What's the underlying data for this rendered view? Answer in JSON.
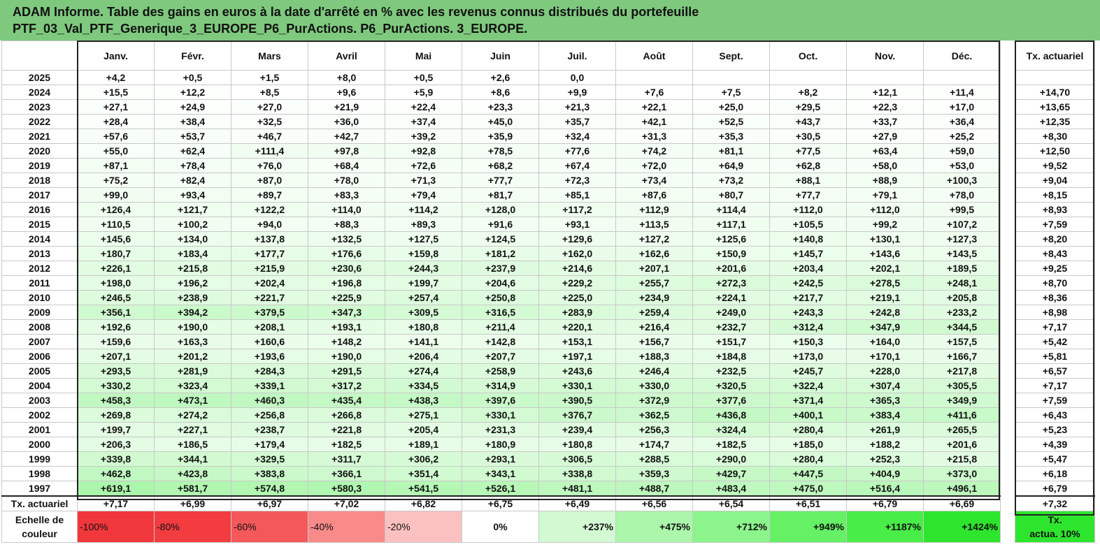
{
  "title_line1": "ADAM Informe. Table des gains en euros à la date d'arrêté en % avec les revenus connus distribués du portefeuille",
  "title_line2": "PTF_03_Val_PTF_Generique_3_EUROPE_P6_PurActions. P6_PurActions. 3_EUROPE.",
  "months": [
    "Janv.",
    "Févr.",
    "Mars",
    "Avril",
    "Mai",
    "Juin",
    "Juil.",
    "Août",
    "Sept.",
    "Oct.",
    "Nov.",
    "Déc."
  ],
  "actuarial_header": "Tx. actuariel",
  "rows": [
    {
      "year": "2025",
      "values": [
        "+4,2",
        "+0,5",
        "+1,5",
        "+8,0",
        "+0,5",
        "+2,6",
        "0,0",
        "",
        "",
        "",
        "",
        ""
      ],
      "actuarial": ""
    },
    {
      "year": "2024",
      "values": [
        "+15,5",
        "+12,2",
        "+8,5",
        "+9,6",
        "+5,9",
        "+8,6",
        "+9,9",
        "+7,6",
        "+7,5",
        "+8,2",
        "+12,1",
        "+11,4"
      ],
      "actuarial": "+14,70"
    },
    {
      "year": "2023",
      "values": [
        "+27,1",
        "+24,9",
        "+27,0",
        "+21,9",
        "+22,4",
        "+23,3",
        "+21,3",
        "+22,1",
        "+25,0",
        "+29,5",
        "+22,3",
        "+17,0"
      ],
      "actuarial": "+13,65"
    },
    {
      "year": "2022",
      "values": [
        "+28,4",
        "+38,4",
        "+32,5",
        "+36,0",
        "+37,4",
        "+45,0",
        "+35,7",
        "+42,1",
        "+52,5",
        "+43,7",
        "+33,7",
        "+36,4"
      ],
      "actuarial": "+12,35"
    },
    {
      "year": "2021",
      "values": [
        "+57,6",
        "+53,7",
        "+46,7",
        "+42,7",
        "+39,2",
        "+35,9",
        "+32,4",
        "+31,3",
        "+35,3",
        "+30,5",
        "+27,9",
        "+25,2"
      ],
      "actuarial": "+8,30"
    },
    {
      "year": "2020",
      "values": [
        "+55,0",
        "+62,4",
        "+111,4",
        "+97,8",
        "+92,8",
        "+78,5",
        "+77,6",
        "+74,2",
        "+81,1",
        "+77,5",
        "+63,4",
        "+59,0"
      ],
      "actuarial": "+12,50"
    },
    {
      "year": "2019",
      "values": [
        "+87,1",
        "+78,4",
        "+76,0",
        "+68,4",
        "+72,6",
        "+68,2",
        "+67,4",
        "+72,0",
        "+64,9",
        "+62,8",
        "+58,0",
        "+53,0"
      ],
      "actuarial": "+9,52"
    },
    {
      "year": "2018",
      "values": [
        "+75,2",
        "+82,4",
        "+87,0",
        "+78,0",
        "+71,3",
        "+77,7",
        "+72,3",
        "+73,4",
        "+73,2",
        "+88,1",
        "+88,9",
        "+100,3"
      ],
      "actuarial": "+9,04"
    },
    {
      "year": "2017",
      "values": [
        "+99,0",
        "+93,4",
        "+89,7",
        "+83,3",
        "+79,4",
        "+81,7",
        "+85,1",
        "+87,6",
        "+80,7",
        "+77,7",
        "+79,1",
        "+78,0"
      ],
      "actuarial": "+8,15"
    },
    {
      "year": "2016",
      "values": [
        "+126,4",
        "+121,7",
        "+122,2",
        "+114,0",
        "+114,2",
        "+128,0",
        "+117,2",
        "+112,9",
        "+114,4",
        "+112,0",
        "+112,0",
        "+99,5"
      ],
      "actuarial": "+8,93"
    },
    {
      "year": "2015",
      "values": [
        "+110,5",
        "+100,2",
        "+94,0",
        "+88,3",
        "+89,3",
        "+91,6",
        "+93,1",
        "+113,5",
        "+117,1",
        "+105,5",
        "+99,2",
        "+107,2"
      ],
      "actuarial": "+7,59"
    },
    {
      "year": "2014",
      "values": [
        "+145,6",
        "+134,0",
        "+137,8",
        "+132,5",
        "+127,5",
        "+124,5",
        "+129,6",
        "+127,2",
        "+125,6",
        "+140,8",
        "+130,1",
        "+127,3"
      ],
      "actuarial": "+8,20"
    },
    {
      "year": "2013",
      "values": [
        "+180,7",
        "+183,4",
        "+177,7",
        "+176,6",
        "+159,8",
        "+181,2",
        "+162,0",
        "+162,6",
        "+150,9",
        "+145,7",
        "+143,6",
        "+143,5"
      ],
      "actuarial": "+8,43"
    },
    {
      "year": "2012",
      "values": [
        "+226,1",
        "+215,8",
        "+215,9",
        "+230,6",
        "+244,3",
        "+237,9",
        "+214,6",
        "+207,1",
        "+201,6",
        "+203,4",
        "+202,1",
        "+189,5"
      ],
      "actuarial": "+9,25"
    },
    {
      "year": "2011",
      "values": [
        "+198,0",
        "+196,2",
        "+202,4",
        "+196,8",
        "+199,7",
        "+204,6",
        "+229,2",
        "+255,7",
        "+272,3",
        "+242,5",
        "+278,5",
        "+248,1"
      ],
      "actuarial": "+8,70"
    },
    {
      "year": "2010",
      "values": [
        "+246,5",
        "+238,9",
        "+221,7",
        "+225,9",
        "+257,4",
        "+250,8",
        "+225,0",
        "+234,9",
        "+224,1",
        "+217,7",
        "+219,1",
        "+205,8"
      ],
      "actuarial": "+8,36"
    },
    {
      "year": "2009",
      "values": [
        "+356,1",
        "+394,2",
        "+379,5",
        "+347,3",
        "+309,5",
        "+316,5",
        "+283,9",
        "+259,4",
        "+249,0",
        "+243,3",
        "+242,8",
        "+233,2"
      ],
      "actuarial": "+8,98"
    },
    {
      "year": "2008",
      "values": [
        "+192,6",
        "+190,0",
        "+208,1",
        "+193,1",
        "+180,8",
        "+211,4",
        "+220,1",
        "+216,4",
        "+232,7",
        "+312,4",
        "+347,9",
        "+344,5"
      ],
      "actuarial": "+7,17"
    },
    {
      "year": "2007",
      "values": [
        "+159,6",
        "+163,3",
        "+160,6",
        "+148,2",
        "+141,1",
        "+142,8",
        "+153,1",
        "+156,7",
        "+151,7",
        "+150,3",
        "+164,0",
        "+157,5"
      ],
      "actuarial": "+5,42"
    },
    {
      "year": "2006",
      "values": [
        "+207,1",
        "+201,2",
        "+193,6",
        "+190,0",
        "+206,4",
        "+207,7",
        "+197,1",
        "+188,3",
        "+184,8",
        "+173,0",
        "+170,1",
        "+166,7"
      ],
      "actuarial": "+5,81"
    },
    {
      "year": "2005",
      "values": [
        "+293,5",
        "+281,9",
        "+284,3",
        "+291,5",
        "+274,4",
        "+258,9",
        "+243,6",
        "+246,4",
        "+232,5",
        "+245,7",
        "+228,0",
        "+217,8"
      ],
      "actuarial": "+6,57"
    },
    {
      "year": "2004",
      "values": [
        "+330,2",
        "+323,4",
        "+339,1",
        "+317,2",
        "+334,5",
        "+314,9",
        "+330,1",
        "+330,0",
        "+320,5",
        "+322,4",
        "+307,4",
        "+305,5"
      ],
      "actuarial": "+7,17"
    },
    {
      "year": "2003",
      "values": [
        "+458,3",
        "+473,1",
        "+460,3",
        "+435,4",
        "+438,3",
        "+397,6",
        "+390,5",
        "+372,9",
        "+377,6",
        "+371,4",
        "+365,3",
        "+349,9"
      ],
      "actuarial": "+7,59"
    },
    {
      "year": "2002",
      "values": [
        "+269,8",
        "+274,2",
        "+256,8",
        "+266,8",
        "+275,1",
        "+330,1",
        "+376,7",
        "+362,5",
        "+436,8",
        "+400,1",
        "+383,4",
        "+411,6"
      ],
      "actuarial": "+6,43"
    },
    {
      "year": "2001",
      "values": [
        "+199,7",
        "+227,1",
        "+238,7",
        "+221,8",
        "+205,4",
        "+231,3",
        "+239,4",
        "+256,3",
        "+324,4",
        "+280,4",
        "+261,9",
        "+265,5"
      ],
      "actuarial": "+5,23"
    },
    {
      "year": "2000",
      "values": [
        "+206,3",
        "+186,5",
        "+179,4",
        "+182,5",
        "+189,1",
        "+180,9",
        "+180,8",
        "+174,7",
        "+182,5",
        "+185,0",
        "+188,2",
        "+201,6"
      ],
      "actuarial": "+4,39"
    },
    {
      "year": "1999",
      "values": [
        "+339,8",
        "+344,1",
        "+329,5",
        "+311,7",
        "+306,2",
        "+293,1",
        "+306,5",
        "+288,5",
        "+290,0",
        "+280,4",
        "+252,3",
        "+215,8"
      ],
      "actuarial": "+5,47"
    },
    {
      "year": "1998",
      "values": [
        "+462,8",
        "+423,8",
        "+383,8",
        "+366,1",
        "+351,4",
        "+343,1",
        "+338,8",
        "+359,3",
        "+429,7",
        "+447,5",
        "+404,9",
        "+373,0"
      ],
      "actuarial": "+6,18"
    },
    {
      "year": "1997",
      "values": [
        "+619,1",
        "+581,7",
        "+574,8",
        "+580,3",
        "+541,5",
        "+526,1",
        "+481,1",
        "+488,7",
        "+483,4",
        "+475,0",
        "+516,4",
        "+496,1"
      ],
      "actuarial": "+6,79"
    }
  ],
  "totals": {
    "label": "Tx. actuariel",
    "values": [
      "+7,17",
      "+6,99",
      "+6,97",
      "+7,02",
      "+6,82",
      "+6,75",
      "+6,49",
      "+6,56",
      "+6,54",
      "+6,51",
      "+6,79",
      "+6,69"
    ],
    "actuarial": "+7,32"
  },
  "scale": {
    "label_line1": "Echelle de",
    "label_line2": "couleur",
    "cells": [
      {
        "text": "-100%",
        "color": "#f0373c"
      },
      {
        "text": "-80%",
        "color": "#f23c40"
      },
      {
        "text": "-60%",
        "color": "#f4585a"
      },
      {
        "text": "-40%",
        "color": "#f88a8a"
      },
      {
        "text": "-20%",
        "color": "#fbc0c0"
      },
      {
        "text": "0%",
        "color": "#ffffff"
      },
      {
        "text": "+237%",
        "color": "#d2f9d2"
      },
      {
        "text": "+475%",
        "color": "#abf6ab"
      },
      {
        "text": "+712%",
        "color": "#8bf48b"
      },
      {
        "text": "+949%",
        "color": "#66f066"
      },
      {
        "text": "+1187%",
        "color": "#48ed48"
      },
      {
        "text": "+1424%",
        "color": "#2ee52e"
      }
    ],
    "side_line1": "Tx.",
    "side_line2": "actua. 10%",
    "side_color": "#2ee52e"
  },
  "colors": {
    "title_bg": "#7fc97f",
    "positive_base": "#2ee52e"
  },
  "scale_max": 1424
}
